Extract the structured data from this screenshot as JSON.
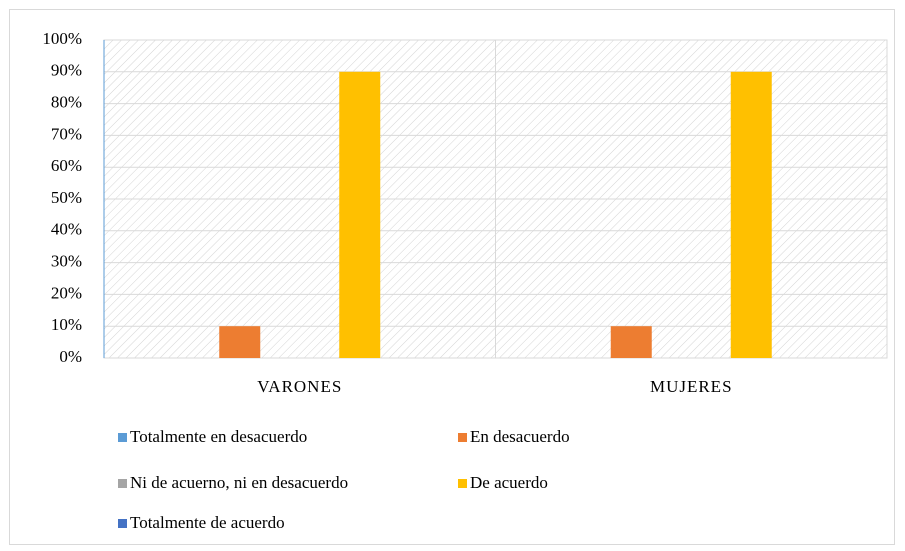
{
  "chart_data": {
    "type": "bar",
    "categories": [
      "VARONES",
      "MUJERES"
    ],
    "series": [
      {
        "name": "Totalmente en desacuerdo",
        "color": "#5b9bd5",
        "values": [
          0,
          0
        ]
      },
      {
        "name": "En desacuerdo",
        "color": "#ed7d31",
        "values": [
          10,
          10
        ]
      },
      {
        "name": "Ni de acuerno, ni en desacuerdo",
        "color": "#a5a5a5",
        "values": [
          0,
          0
        ]
      },
      {
        "name": "De acuerdo",
        "color": "#ffc000",
        "values": [
          90,
          90
        ]
      },
      {
        "name": "Totalmente de acuerdo",
        "color": "#4472c4",
        "values": [
          0,
          0
        ]
      }
    ],
    "ylim": [
      0,
      100
    ],
    "yticks": [
      {
        "value": 0,
        "label": "0%"
      },
      {
        "value": 10,
        "label": "10%"
      },
      {
        "value": 20,
        "label": "20%"
      },
      {
        "value": 30,
        "label": "30%"
      },
      {
        "value": 40,
        "label": "40%"
      },
      {
        "value": 50,
        "label": "50%"
      },
      {
        "value": 60,
        "label": "60%"
      },
      {
        "value": 70,
        "label": "70%"
      },
      {
        "value": 80,
        "label": "80%"
      },
      {
        "value": 90,
        "label": "90%"
      },
      {
        "value": 100,
        "label": "100%"
      }
    ],
    "grid": true,
    "legend": "bottom"
  }
}
